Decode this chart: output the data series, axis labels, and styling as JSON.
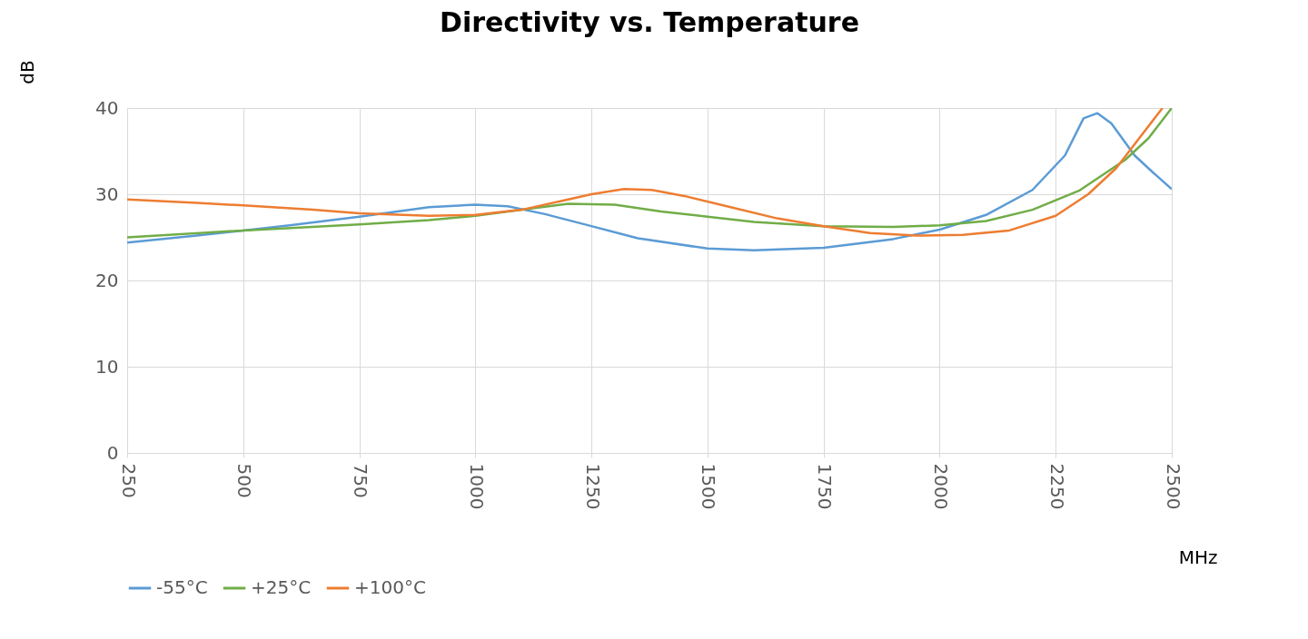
{
  "chart_data": {
    "type": "line",
    "title": "Directivity vs. Temperature",
    "xlabel": "MHz",
    "ylabel": "dB",
    "xlim": [
      250,
      2500
    ],
    "xticks": [
      250,
      500,
      750,
      1000,
      1250,
      1500,
      1750,
      2000,
      2250,
      2500
    ],
    "ylim": [
      0,
      40
    ],
    "yticks": [
      0,
      10,
      20,
      30,
      40
    ],
    "grid": true,
    "legend": "bottom",
    "marker": "none",
    "line_style": "solid",
    "series": [
      {
        "name": "-55°C",
        "color": "#5b9bd5",
        "x": [
          250,
          400,
          500,
          600,
          750,
          900,
          1000,
          1070,
          1150,
          1250,
          1350,
          1500,
          1600,
          1750,
          1900,
          2000,
          2100,
          2200,
          2270,
          2310,
          2340,
          2370,
          2420,
          2460,
          2500
        ],
        "values": [
          24.4,
          25.2,
          25.8,
          26.4,
          27.4,
          28.5,
          28.8,
          28.6,
          27.7,
          26.3,
          24.9,
          23.7,
          23.5,
          23.8,
          24.8,
          25.9,
          27.6,
          30.5,
          34.5,
          38.8,
          39.4,
          38.2,
          34.5,
          32.5,
          30.6
        ]
      },
      {
        "name": "+25°C",
        "color": "#70ad47",
        "x": [
          250,
          500,
          750,
          900,
          1000,
          1100,
          1200,
          1300,
          1400,
          1500,
          1600,
          1750,
          1900,
          2000,
          2100,
          2200,
          2300,
          2400,
          2450,
          2500
        ],
        "values": [
          25.0,
          25.8,
          26.5,
          27.0,
          27.5,
          28.2,
          28.9,
          28.8,
          28.0,
          27.4,
          26.8,
          26.3,
          26.2,
          26.4,
          26.9,
          28.2,
          30.4,
          34.0,
          36.5,
          40
        ]
      },
      {
        "name": "+100°C",
        "color": "#ed7d31",
        "x": [
          250,
          400,
          500,
          650,
          750,
          900,
          1000,
          1100,
          1200,
          1250,
          1320,
          1380,
          1450,
          1550,
          1650,
          1750,
          1850,
          1950,
          2050,
          2150,
          2250,
          2320,
          2380,
          2430,
          2480
        ],
        "values": [
          29.4,
          29.0,
          28.7,
          28.2,
          27.8,
          27.5,
          27.6,
          28.2,
          29.4,
          30.0,
          30.6,
          30.5,
          29.8,
          28.5,
          27.2,
          26.3,
          25.5,
          25.2,
          25.3,
          25.8,
          27.5,
          30.0,
          33.0,
          36.5,
          40
        ]
      }
    ]
  }
}
